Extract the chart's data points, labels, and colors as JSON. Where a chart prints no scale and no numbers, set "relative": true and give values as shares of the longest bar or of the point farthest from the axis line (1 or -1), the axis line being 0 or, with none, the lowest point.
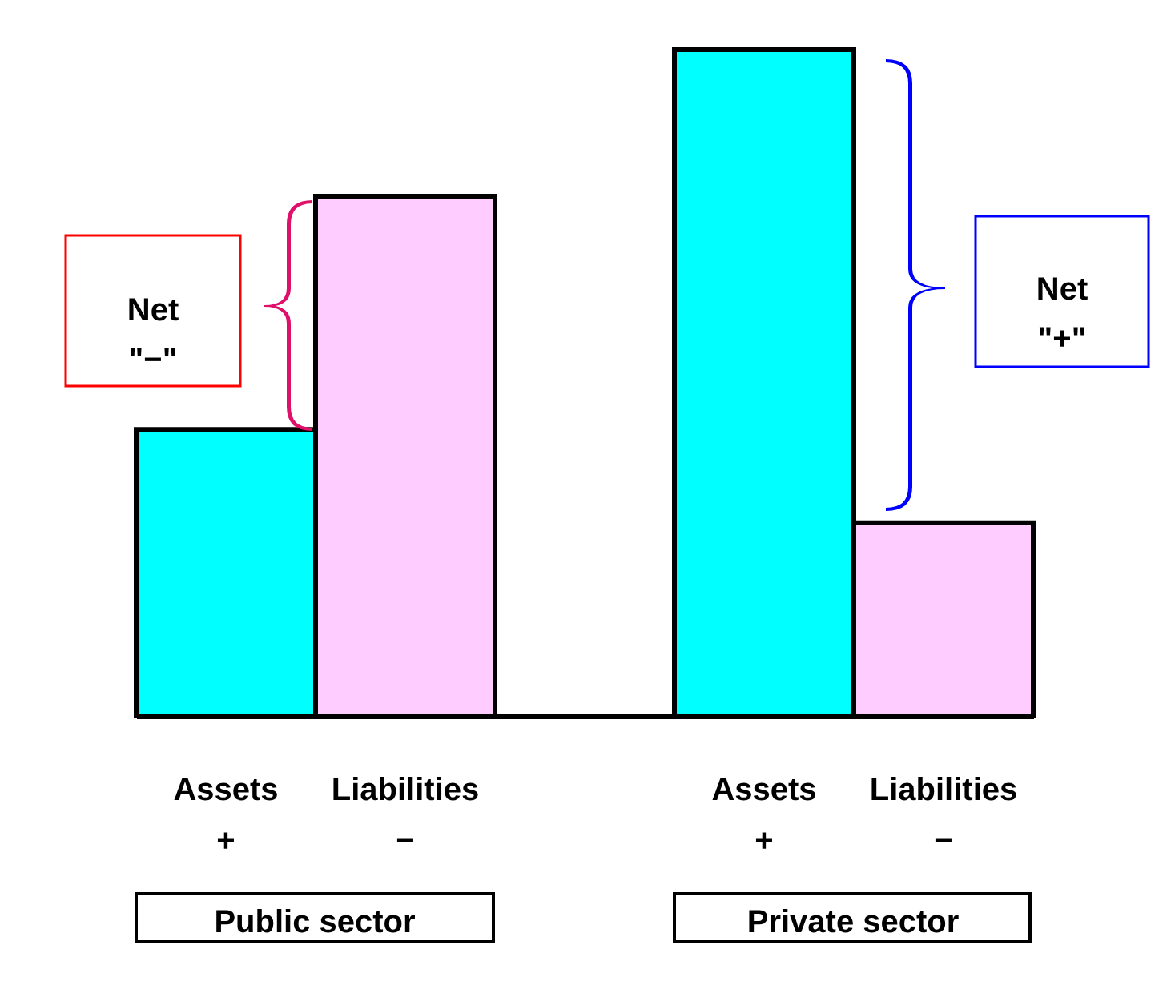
{
  "chart_data": {
    "type": "bar",
    "relative": true,
    "categories": [
      "Assets\n+",
      "Liabilities\n−",
      "Assets\n+",
      "Liabilities\n−"
    ],
    "values": [
      0.43,
      0.78,
      1,
      0.29
    ],
    "colors": [
      "#00ffff",
      "#ffccff",
      "#00ffff",
      "#ffccff"
    ],
    "annotations": [
      "Net\n\"−\"",
      "Net\n\"+\"",
      "Public sector",
      "Private sector"
    ]
  }
}
